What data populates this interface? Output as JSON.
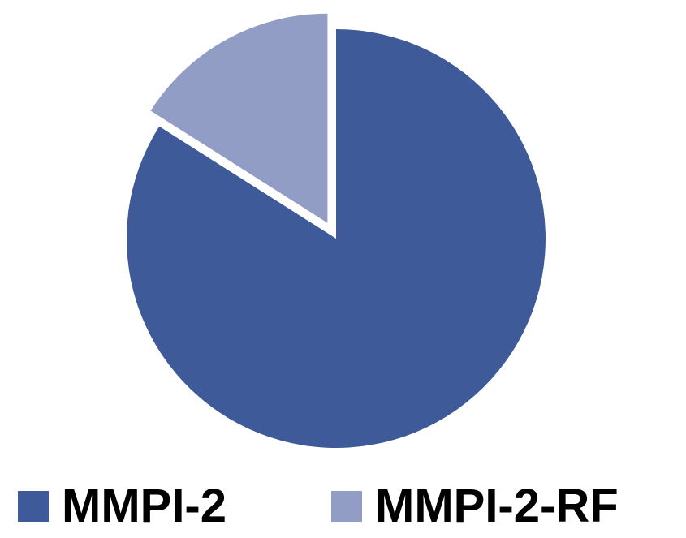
{
  "chart_data": {
    "type": "pie",
    "categories": [
      "MMPI-2",
      "MMPI-2-RF"
    ],
    "values": [
      84,
      16
    ],
    "colors": [
      "#3F5A99",
      "#919DC5"
    ],
    "exploded": [
      "MMPI-2-RF"
    ],
    "start_angle": "12 o'clock, clockwise",
    "legend_position": "bottom",
    "title": ""
  },
  "legend": {
    "items": [
      {
        "label": "MMPI-2",
        "color": "#3F5A99"
      },
      {
        "label": "MMPI-2-RF",
        "color": "#919DC5"
      }
    ]
  }
}
